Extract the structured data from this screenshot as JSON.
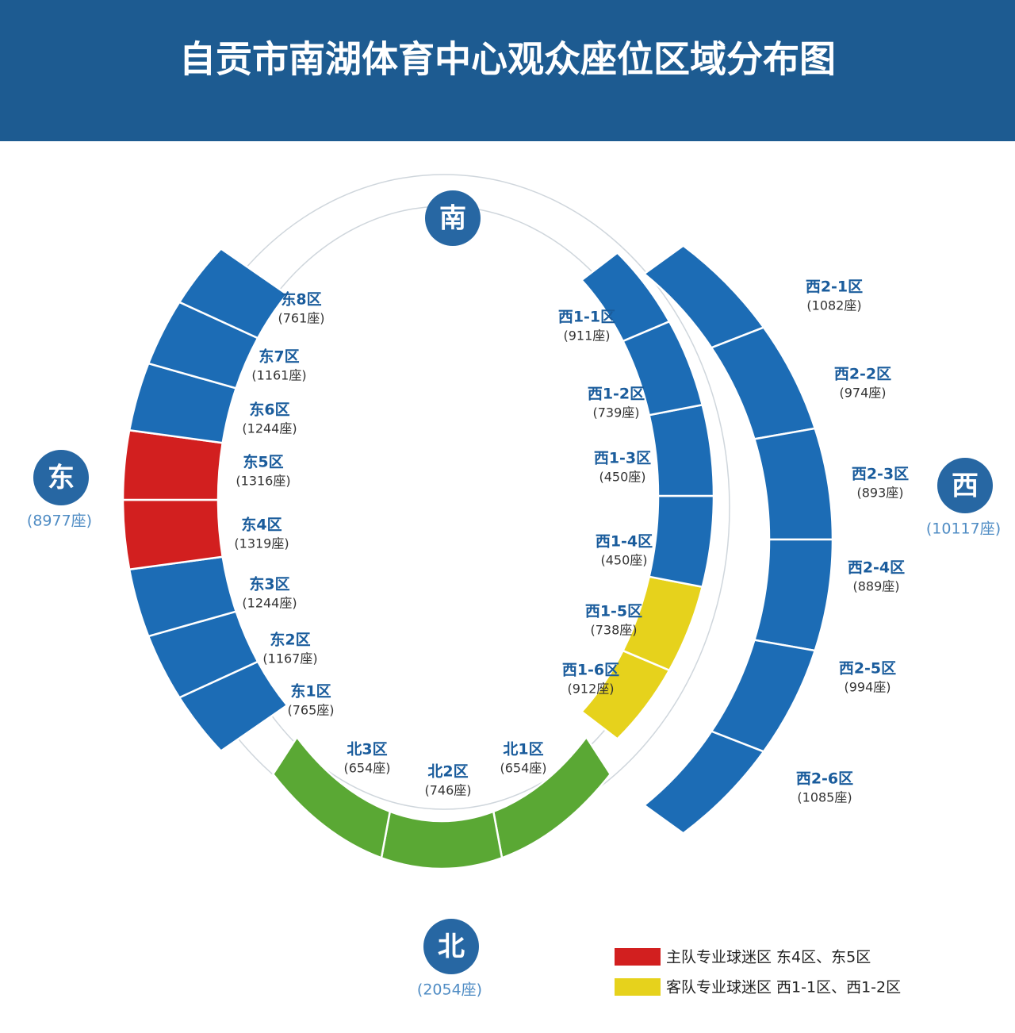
{
  "header": {
    "title": "自贡市南湖体育中心观众座位区域分布图"
  },
  "directions": [
    {
      "label": "南"
    },
    {
      "label": "东",
      "seats": "(8977座)"
    },
    {
      "label": "西",
      "seats": "(10117座)"
    },
    {
      "label": "北",
      "seats": "(2054座)"
    }
  ],
  "stands": [
    {
      "sections": [
        {
          "name": "东1区",
          "seats": "(765座)",
          "color": "#1c6cb5"
        },
        {
          "name": "东2区",
          "seats": "(1167座)",
          "color": "#1c6cb5"
        },
        {
          "name": "东3区",
          "seats": "(1244座)",
          "color": "#1c6cb5"
        },
        {
          "name": "东4区",
          "seats": "(1319座)",
          "color": "#d21f1f"
        },
        {
          "name": "东5区",
          "seats": "(1316座)",
          "color": "#d21f1f"
        },
        {
          "name": "东6区",
          "seats": "(1244座)",
          "color": "#1c6cb5"
        },
        {
          "name": "东7区",
          "seats": "(1161座)",
          "color": "#1c6cb5"
        },
        {
          "name": "东8区",
          "seats": "(761座)",
          "color": "#1c6cb5"
        }
      ]
    },
    {
      "sections": [
        {
          "name": "西1-1区",
          "seats": "(911座)",
          "color": "#e6d21c"
        },
        {
          "name": "西1-2区",
          "seats": "(739座)",
          "color": "#e6d21c"
        },
        {
          "name": "西1-3区",
          "seats": "(450座)",
          "color": "#1c6cb5"
        },
        {
          "name": "西1-4区",
          "seats": "(450座)",
          "color": "#1c6cb5"
        },
        {
          "name": "西1-5区",
          "seats": "(738座)",
          "color": "#1c6cb5"
        },
        {
          "name": "西1-6区",
          "seats": "(912座)",
          "color": "#1c6cb5"
        }
      ]
    },
    {
      "sections": [
        {
          "name": "西2-1区",
          "seats": "(1082座)",
          "color": "#1c6cb5"
        },
        {
          "name": "西2-2区",
          "seats": "(974座)",
          "color": "#1c6cb5"
        },
        {
          "name": "西2-3区",
          "seats": "(893座)",
          "color": "#1c6cb5"
        },
        {
          "name": "西2-4区",
          "seats": "(889座)",
          "color": "#1c6cb5"
        },
        {
          "name": "西2-5区",
          "seats": "(994座)",
          "color": "#1c6cb5"
        },
        {
          "name": "西2-6区",
          "seats": "(1085座)",
          "color": "#1c6cb5"
        }
      ]
    },
    {
      "sections": [
        {
          "name": "北1区",
          "seats": "(654座)",
          "color": "#5aa834"
        },
        {
          "name": "北2区",
          "seats": "(746座)",
          "color": "#5aa834"
        },
        {
          "name": "北3区",
          "seats": "(654座)",
          "color": "#5aa834"
        }
      ]
    }
  ],
  "legend": [
    {
      "label": "主队专业球迷区 东4区、东5区",
      "color": "#d21f1f"
    },
    {
      "label": "客队专业球迷区 西1-1区、西1-2区",
      "color": "#e6d21c"
    }
  ]
}
